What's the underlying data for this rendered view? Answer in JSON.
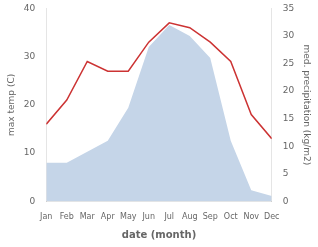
{
  "chart_data": {
    "type": "line",
    "xlabel": "date (month)",
    "ylabel": "max temp (C)",
    "y2label": "med. precipitation (kg/m2)",
    "categories": [
      "Jan",
      "Feb",
      "Mar",
      "Apr",
      "May",
      "Jun",
      "Jul",
      "Aug",
      "Sep",
      "Oct",
      "Nov",
      "Dec"
    ],
    "series": [
      {
        "type": "area",
        "axis": "y2",
        "color": "#c5d5e8",
        "values": [
          7,
          7,
          9,
          11,
          17,
          28,
          32,
          30,
          26,
          11,
          2,
          1
        ]
      },
      {
        "type": "line",
        "axis": "y",
        "color": "#cc3333",
        "values": [
          16,
          21,
          29,
          27,
          27,
          33,
          37,
          36,
          33,
          29,
          18,
          13
        ]
      }
    ],
    "ylim": [
      0,
      40
    ],
    "yticks": [
      0,
      10,
      20,
      30,
      40
    ],
    "y2lim": [
      0,
      35
    ],
    "y2ticks": [
      0,
      5,
      10,
      15,
      20,
      25,
      30,
      35
    ],
    "grid": false
  }
}
